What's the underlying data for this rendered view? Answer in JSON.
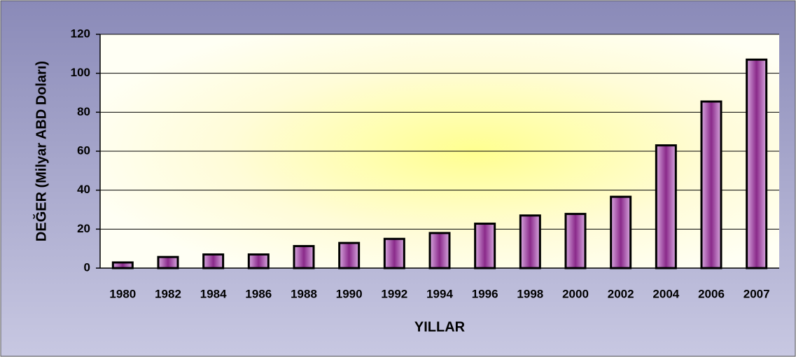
{
  "chart_data": {
    "type": "bar",
    "x_label": "YILLAR",
    "y_label": "DEĞER (Milyar ABD Doları)",
    "categories": [
      "1980",
      "1982",
      "1984",
      "1986",
      "1988",
      "1990",
      "1992",
      "1994",
      "1996",
      "1998",
      "2000",
      "2002",
      "2004",
      "2006",
      "2007"
    ],
    "values": [
      2.9,
      5.7,
      7,
      7,
      11.3,
      12.9,
      15,
      18,
      22.8,
      27,
      27.8,
      36.6,
      63,
      85.5,
      107
    ],
    "color": "#c080c8",
    "ylim": [
      0,
      120
    ],
    "yticks": [
      0,
      20,
      40,
      60,
      80,
      100,
      120
    ],
    "grid": true
  }
}
